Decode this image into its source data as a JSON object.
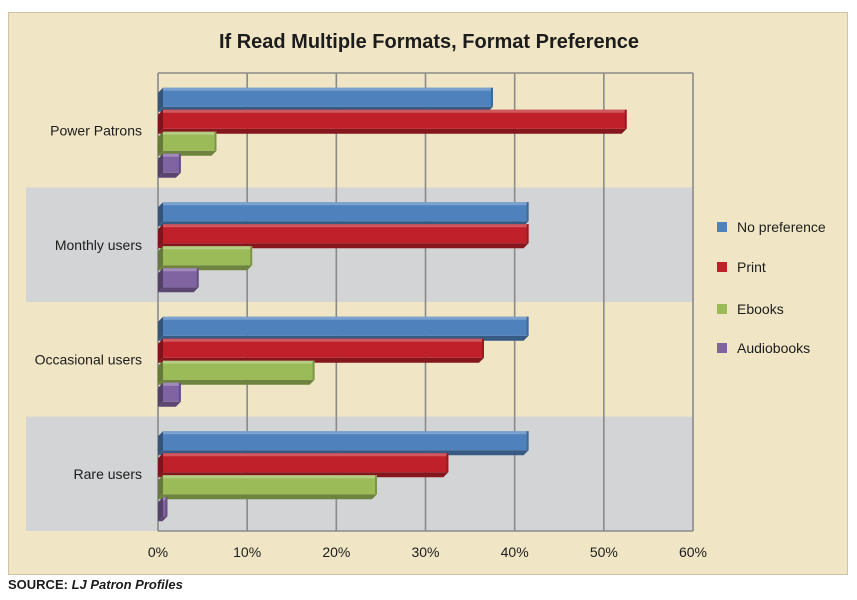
{
  "chart_data": {
    "type": "bar",
    "orientation": "horizontal",
    "title": "If Read Multiple Formats, Format Preference",
    "categories": [
      "Power Patrons",
      "Monthly users",
      "Occasional users",
      "Rare users"
    ],
    "series": [
      {
        "name": "No preference",
        "color": "#4f81bd",
        "values": [
          37,
          41,
          41,
          41
        ]
      },
      {
        "name": "Print",
        "color": "#c0202a",
        "values": [
          52,
          41,
          36,
          32
        ]
      },
      {
        "name": "Ebooks",
        "color": "#9bbb59",
        "values": [
          6,
          10,
          17,
          24
        ]
      },
      {
        "name": "Audiobooks",
        "color": "#8064a2",
        "values": [
          2,
          4,
          2,
          0.5
        ]
      }
    ],
    "xlim": [
      0,
      60
    ],
    "xticks": [
      "0%",
      "10%",
      "20%",
      "30%",
      "40%",
      "50%",
      "60%"
    ],
    "grid": true,
    "legend_position": "right",
    "band_color": "#d3d4d5",
    "plot_background": "#f0e6c5"
  },
  "source": {
    "label": "SOURCE:",
    "value": "LJ Patron Profiles"
  }
}
